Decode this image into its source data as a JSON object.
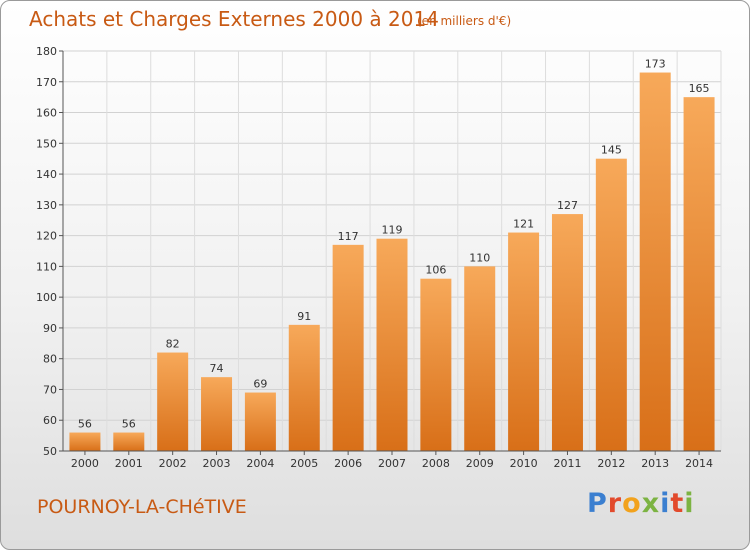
{
  "header": {
    "title": "Achats et Charges Externes 2000 à 2014",
    "subtitle": "(en milliers d'€)"
  },
  "footer": {
    "commune": "POURNOY-LA-CHéTIVE",
    "brand_letters": [
      {
        "char": "P",
        "color": "#3b7fd0"
      },
      {
        "char": "r",
        "color": "#e24a2c"
      },
      {
        "char": "o",
        "color": "#f2a21d"
      },
      {
        "char": "x",
        "color": "#7cb342"
      },
      {
        "char": "i",
        "color": "#3b7fd0"
      },
      {
        "char": "t",
        "color": "#e24a2c"
      },
      {
        "char": "i",
        "color": "#7cb342"
      }
    ]
  },
  "chart_data": {
    "type": "bar",
    "categories": [
      "2000",
      "2001",
      "2002",
      "2003",
      "2004",
      "2005",
      "2006",
      "2007",
      "2008",
      "2009",
      "2010",
      "2011",
      "2012",
      "2013",
      "2014"
    ],
    "values": [
      56,
      56,
      82,
      74,
      69,
      91,
      117,
      119,
      106,
      110,
      121,
      127,
      145,
      173,
      165
    ],
    "ylim": [
      50,
      180
    ],
    "yticks": [
      50,
      60,
      70,
      80,
      90,
      100,
      110,
      120,
      130,
      140,
      150,
      160,
      170,
      180
    ],
    "grid": true,
    "bar_color_light": "#f7a95a",
    "bar_color_dark": "#d86f18"
  }
}
